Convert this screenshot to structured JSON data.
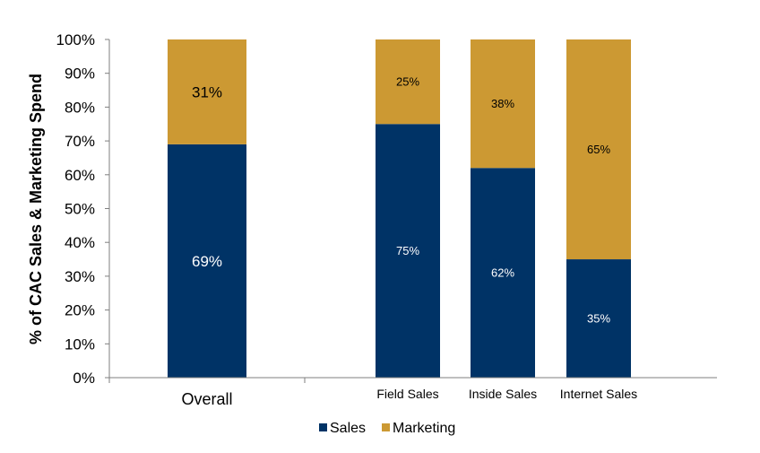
{
  "chart_data": {
    "type": "bar",
    "stacked": true,
    "title": "",
    "xlabel": "",
    "ylabel": "% of CAC Sales & Marketing Spend",
    "ylim": [
      0,
      100
    ],
    "y_ticks": [
      "0%",
      "10%",
      "20%",
      "30%",
      "40%",
      "50%",
      "60%",
      "70%",
      "80%",
      "90%",
      "100%"
    ],
    "categories": [
      "Overall",
      "Field Sales",
      "Inside Sales",
      "Internet Sales"
    ],
    "series": [
      {
        "name": "Sales",
        "color": "#003366",
        "values": [
          69,
          75,
          62,
          35
        ],
        "labels": [
          "69%",
          "75%",
          "62%",
          "35%"
        ]
      },
      {
        "name": "Marketing",
        "color": "#CC9933",
        "values": [
          31,
          25,
          38,
          65
        ],
        "labels": [
          "31%",
          "25%",
          "38%",
          "65%"
        ]
      }
    ],
    "legend": {
      "position": "bottom",
      "entries": [
        "Sales",
        "Marketing"
      ]
    },
    "grid": false
  }
}
